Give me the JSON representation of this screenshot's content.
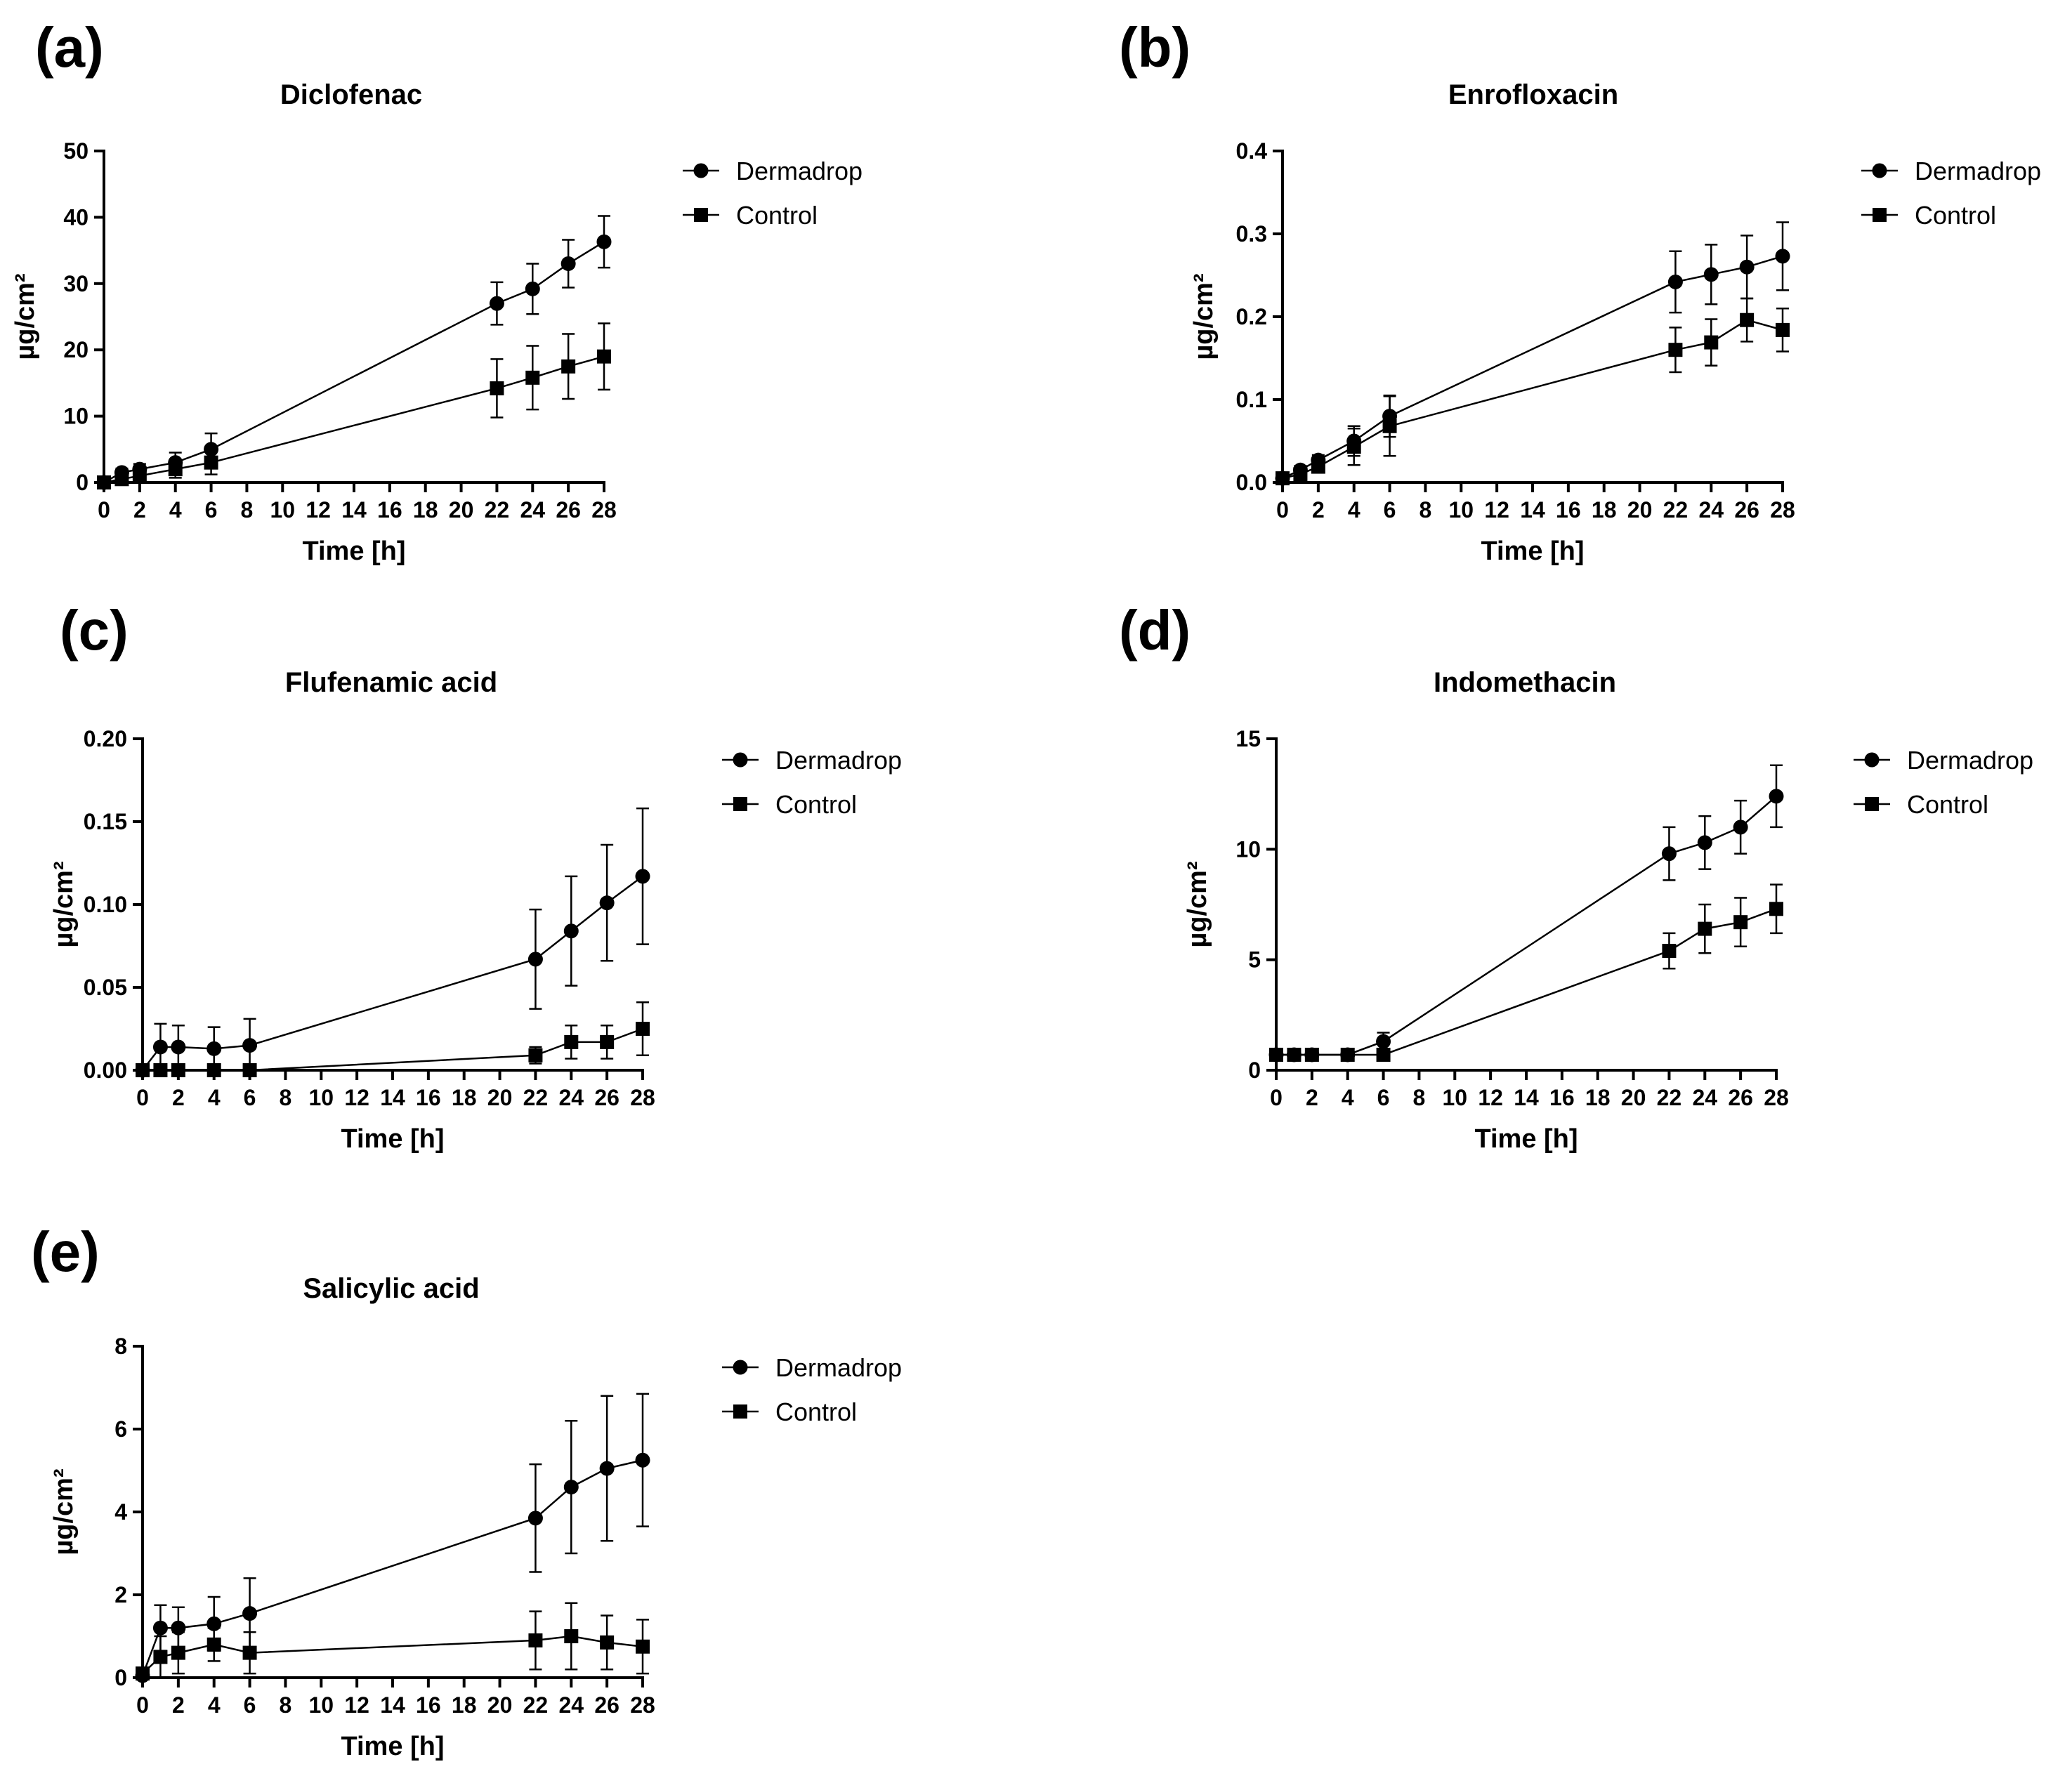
{
  "figure": {
    "panel_labels": [
      "(a)",
      "(b)",
      "(c)",
      "(d)",
      "(e)"
    ]
  },
  "colors": {
    "ink": "#000000",
    "background": "#ffffff"
  },
  "chart_data": [
    {
      "type": "line",
      "panel": "(a)",
      "title": "Diclofenac",
      "xlabel": "Time [h]",
      "ylabel": "µg/cm²",
      "xlim": [
        0,
        28
      ],
      "ylim": [
        0,
        50
      ],
      "x_ticks": [
        0,
        2,
        4,
        6,
        8,
        10,
        12,
        14,
        16,
        18,
        20,
        22,
        24,
        26,
        28
      ],
      "y_ticks": [
        0,
        10,
        20,
        30,
        40,
        50
      ],
      "y_tick_labels": [
        "0",
        "10",
        "20",
        "30",
        "40",
        "50"
      ],
      "legend": "top-right",
      "series": [
        {
          "name": "Dermadrop",
          "marker": "circle",
          "x": [
            0,
            1,
            2,
            4,
            6,
            22,
            24,
            26,
            28
          ],
          "y": [
            0,
            1.5,
            2,
            3,
            5,
            27,
            29.2,
            33,
            36.3
          ],
          "err": [
            0,
            0.6,
            0.8,
            1.5,
            2.4,
            3.2,
            3.8,
            3.6,
            3.9
          ]
        },
        {
          "name": "Control",
          "marker": "square",
          "x": [
            0,
            1,
            2,
            4,
            6,
            22,
            24,
            26,
            28
          ],
          "y": [
            0,
            0.5,
            1,
            2,
            3,
            14.2,
            15.8,
            17.5,
            19
          ],
          "err": [
            0,
            0.3,
            0.5,
            1.3,
            1.8,
            4.4,
            4.8,
            4.9,
            5
          ]
        }
      ]
    },
    {
      "type": "line",
      "panel": "(b)",
      "title": "Enrofloxacin",
      "xlabel": "Time [h]",
      "ylabel": "µg/cm²",
      "xlim": [
        0,
        28
      ],
      "ylim": [
        0,
        0.4
      ],
      "x_ticks": [
        0,
        2,
        4,
        6,
        8,
        10,
        12,
        14,
        16,
        18,
        20,
        22,
        24,
        26,
        28
      ],
      "y_ticks": [
        0,
        0.1,
        0.2,
        0.3,
        0.4
      ],
      "y_tick_labels": [
        "0.0",
        "0.1",
        "0.2",
        "0.3",
        "0.4"
      ],
      "legend": "top-right",
      "series": [
        {
          "name": "Dermadrop",
          "marker": "circle",
          "x": [
            0,
            1,
            2,
            4,
            6,
            22,
            24,
            26,
            28
          ],
          "y": [
            0.005,
            0.015,
            0.027,
            0.05,
            0.08,
            0.242,
            0.251,
            0.26,
            0.273
          ],
          "err": [
            0.002,
            0.005,
            0.006,
            0.018,
            0.025,
            0.037,
            0.036,
            0.038,
            0.041
          ]
        },
        {
          "name": "Control",
          "marker": "square",
          "x": [
            0,
            1,
            2,
            4,
            6,
            22,
            24,
            26,
            28
          ],
          "y": [
            0.005,
            0.01,
            0.019,
            0.043,
            0.068,
            0.16,
            0.169,
            0.196,
            0.184
          ],
          "err": [
            0.002,
            0.004,
            0.005,
            0.022,
            0.036,
            0.027,
            0.028,
            0.026,
            0.026
          ]
        }
      ]
    },
    {
      "type": "line",
      "panel": "(c)",
      "title": "Flufenamic acid",
      "xlabel": "Time [h]",
      "ylabel": "µg/cm²",
      "xlim": [
        0,
        28
      ],
      "ylim": [
        0,
        0.2
      ],
      "x_ticks": [
        0,
        2,
        4,
        6,
        8,
        10,
        12,
        14,
        16,
        18,
        20,
        22,
        24,
        26,
        28
      ],
      "y_ticks": [
        0,
        0.05,
        0.1,
        0.15,
        0.2
      ],
      "y_tick_labels": [
        "0.00",
        "0.05",
        "0.10",
        "0.15",
        "0.20"
      ],
      "legend": "top-right",
      "series": [
        {
          "name": "Dermadrop",
          "marker": "circle",
          "x": [
            0,
            1,
            2,
            4,
            6,
            22,
            24,
            26,
            28
          ],
          "y": [
            0,
            0.014,
            0.014,
            0.013,
            0.015,
            0.067,
            0.084,
            0.101,
            0.117
          ],
          "err": [
            0,
            0.014,
            0.013,
            0.013,
            0.016,
            0.03,
            0.033,
            0.035,
            0.041
          ]
        },
        {
          "name": "Control",
          "marker": "square",
          "x": [
            0,
            1,
            2,
            4,
            6,
            22,
            24,
            26,
            28
          ],
          "y": [
            0,
            0,
            0,
            0,
            0,
            0.009,
            0.017,
            0.017,
            0.025
          ],
          "err": [
            0,
            0,
            0,
            0,
            0,
            0.005,
            0.01,
            0.01,
            0.016
          ]
        }
      ]
    },
    {
      "type": "line",
      "panel": "(d)",
      "title": "Indomethacin",
      "xlabel": "Time [h]",
      "ylabel": "µg/cm²",
      "xlim": [
        0,
        28
      ],
      "ylim": [
        0,
        15
      ],
      "x_ticks": [
        0,
        2,
        4,
        6,
        8,
        10,
        12,
        14,
        16,
        18,
        20,
        22,
        24,
        26,
        28
      ],
      "y_ticks": [
        0,
        5,
        10,
        15
      ],
      "y_tick_labels": [
        "0",
        "5",
        "10",
        "15"
      ],
      "legend": "top-right",
      "series": [
        {
          "name": "Dermadrop",
          "marker": "circle",
          "x": [
            0,
            1,
            2,
            4,
            6,
            22,
            24,
            26,
            28
          ],
          "y": [
            0.7,
            0.7,
            0.7,
            0.7,
            1.3,
            9.8,
            10.3,
            11,
            12.4
          ],
          "err": [
            0,
            0,
            0,
            0,
            0.4,
            1.2,
            1.2,
            1.2,
            1.4
          ]
        },
        {
          "name": "Control",
          "marker": "square",
          "x": [
            0,
            1,
            2,
            4,
            6,
            22,
            24,
            26,
            28
          ],
          "y": [
            0.7,
            0.7,
            0.7,
            0.7,
            0.7,
            5.4,
            6.4,
            6.7,
            7.3
          ],
          "err": [
            0,
            0,
            0,
            0,
            0,
            0.8,
            1.1,
            1.1,
            1.1
          ]
        }
      ]
    },
    {
      "type": "line",
      "panel": "(e)",
      "title": "Salicylic acid",
      "xlabel": "Time [h]",
      "ylabel": "µg/cm²",
      "xlim": [
        0,
        28
      ],
      "ylim": [
        0,
        8
      ],
      "x_ticks": [
        0,
        2,
        4,
        6,
        8,
        10,
        12,
        14,
        16,
        18,
        20,
        22,
        24,
        26,
        28
      ],
      "y_ticks": [
        0,
        2,
        4,
        6,
        8
      ],
      "y_tick_labels": [
        "0",
        "2",
        "4",
        "6",
        "8"
      ],
      "legend": "top-right",
      "series": [
        {
          "name": "Dermadrop",
          "marker": "circle",
          "x": [
            0,
            1,
            2,
            4,
            6,
            22,
            24,
            26,
            28
          ],
          "y": [
            0.05,
            1.2,
            1.2,
            1.3,
            1.55,
            3.85,
            4.6,
            5.05,
            5.25
          ],
          "err": [
            0.05,
            0.55,
            0.5,
            0.65,
            0.85,
            1.3,
            1.6,
            1.75,
            1.6
          ]
        },
        {
          "name": "Control",
          "marker": "square",
          "x": [
            0,
            1,
            2,
            4,
            6,
            22,
            24,
            26,
            28
          ],
          "y": [
            0.1,
            0.5,
            0.6,
            0.8,
            0.6,
            0.9,
            1,
            0.85,
            0.75
          ],
          "err": [
            0.05,
            0.5,
            0.5,
            0.4,
            0.5,
            0.7,
            0.8,
            0.65,
            0.65
          ]
        }
      ]
    }
  ]
}
